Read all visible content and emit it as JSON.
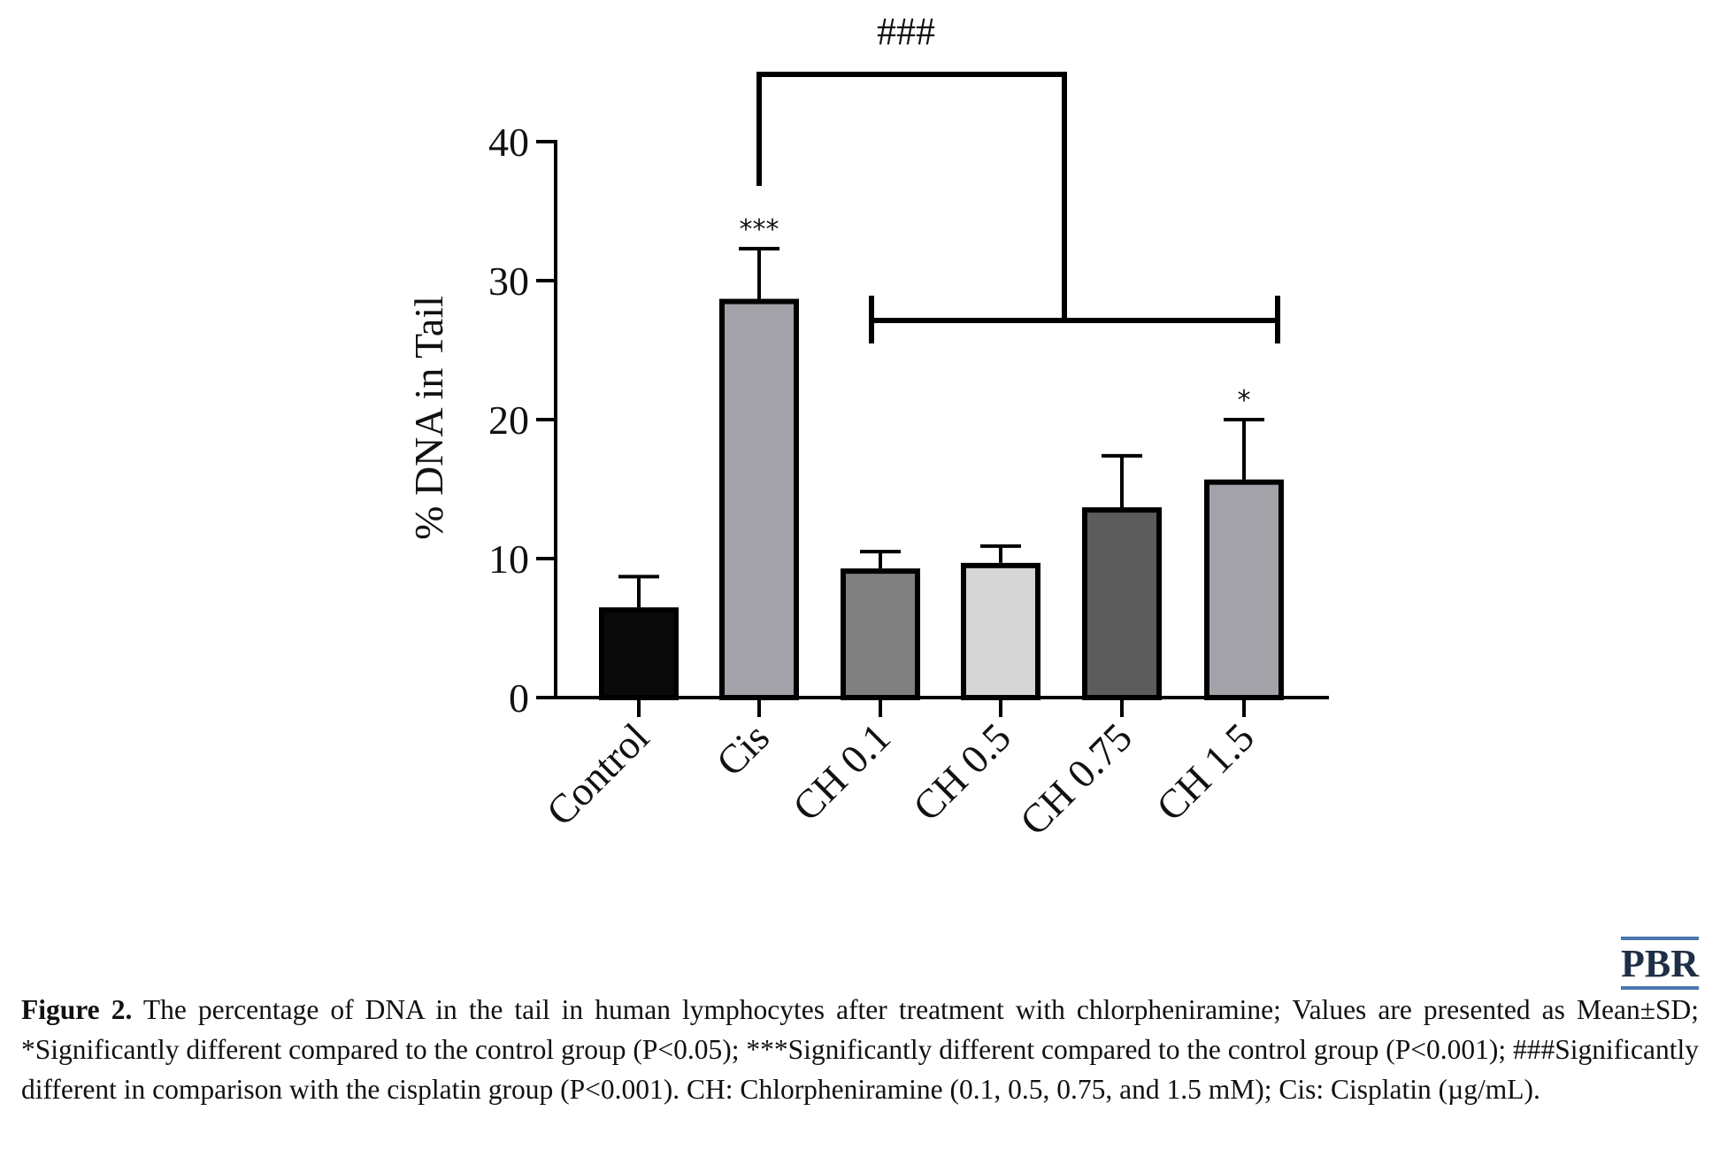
{
  "chart_data": {
    "type": "bar",
    "categories": [
      "Control",
      "Cis",
      "CH 0.1",
      "CH 0.5",
      "CH 0.75",
      "CH 1.5"
    ],
    "values": [
      6.3,
      28.5,
      9.1,
      9.5,
      13.5,
      15.5
    ],
    "errors": [
      2.4,
      3.8,
      1.4,
      1.4,
      3.9,
      4.5
    ],
    "bar_colors": [
      "#0a0a0a",
      "#a2a2a8",
      "#808080",
      "#d6d6d6",
      "#5c5c5c",
      "#a2a2a8"
    ],
    "significance": [
      "",
      "***",
      "",
      "",
      "",
      "*"
    ],
    "bracket_label": "###",
    "ylabel": "% DNA in Tail",
    "ylim": [
      0,
      40
    ],
    "yticks": [
      0,
      10,
      20,
      30,
      40
    ],
    "grid": false
  },
  "brand": "PBR",
  "caption": {
    "label": "Figure 2.",
    "text": "The percentage of DNA in the tail in human lymphocytes after treatment with chlorpheniramine; Values are presented as Mean±SD; *Significantly different compared to the control group (P<0.05); ***Significantly different compared to the control group (P<0.001); ###Significantly different in comparison with the cisplatin group (P<0.001). CH: Chlorpheniramine (0.1, 0.5, 0.75, and 1.5 mM); Cis: Cisplatin (µg/mL)."
  }
}
